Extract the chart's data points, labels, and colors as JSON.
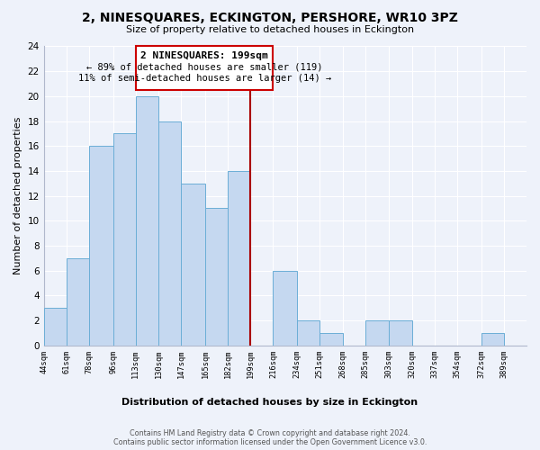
{
  "title": "2, NINESQUARES, ECKINGTON, PERSHORE, WR10 3PZ",
  "subtitle": "Size of property relative to detached houses in Eckington",
  "xlabel": "Distribution of detached houses by size in Eckington",
  "ylabel": "Number of detached properties",
  "bins": [
    44,
    61,
    78,
    96,
    113,
    130,
    147,
    165,
    182,
    199,
    216,
    234,
    251,
    268,
    285,
    303,
    320,
    337,
    354,
    372,
    389
  ],
  "counts": [
    3,
    7,
    16,
    17,
    20,
    18,
    13,
    11,
    14,
    0,
    6,
    2,
    1,
    0,
    2,
    2,
    0,
    0,
    0,
    1
  ],
  "bar_color": "#c5d8f0",
  "bar_edge_color": "#6baed6",
  "marker_value": 199,
  "marker_color": "#aa0000",
  "ylim": [
    0,
    24
  ],
  "yticks": [
    0,
    2,
    4,
    6,
    8,
    10,
    12,
    14,
    16,
    18,
    20,
    22,
    24
  ],
  "annotation_title": "2 NINESQUARES: 199sqm",
  "annotation_line1": "← 89% of detached houses are smaller (119)",
  "annotation_line2": "11% of semi-detached houses are larger (14) →",
  "annotation_box_color": "#ffffff",
  "annotation_box_edge": "#cc0000",
  "tick_labels": [
    "44sqm",
    "61sqm",
    "78sqm",
    "96sqm",
    "113sqm",
    "130sqm",
    "147sqm",
    "165sqm",
    "182sqm",
    "199sqm",
    "216sqm",
    "234sqm",
    "251sqm",
    "268sqm",
    "285sqm",
    "303sqm",
    "320sqm",
    "337sqm",
    "354sqm",
    "372sqm",
    "389sqm"
  ],
  "footer_line1": "Contains HM Land Registry data © Crown copyright and database right 2024.",
  "footer_line2": "Contains public sector information licensed under the Open Government Licence v3.0.",
  "background_color": "#eef2fa",
  "grid_color": "#ffffff",
  "spine_color": "#b0b8cc"
}
